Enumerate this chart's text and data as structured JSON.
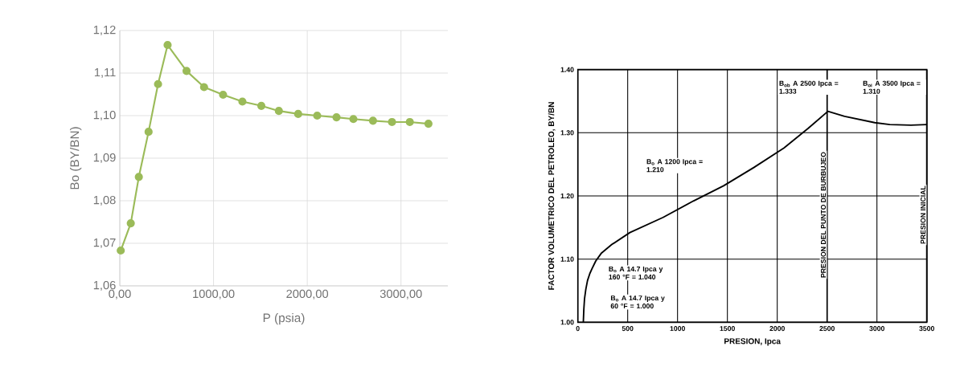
{
  "chart_data": [
    {
      "type": "line",
      "xlabel": "P (psia)",
      "ylabel": "Bo (BY/BN)",
      "grid": true,
      "marker": "circle",
      "line_style": "solid",
      "xlim": [
        0,
        3500
      ],
      "ylim": [
        1.06,
        1.12
      ],
      "xticks": [
        {
          "value": 0,
          "label": "0,00"
        },
        {
          "value": 1000,
          "label": "1000,00"
        },
        {
          "value": 2000,
          "label": "2000,00"
        },
        {
          "value": 3000,
          "label": "3000,00"
        }
      ],
      "yticks": [
        {
          "value": 1.06,
          "label": "1,06"
        },
        {
          "value": 1.07,
          "label": "1,07"
        },
        {
          "value": 1.08,
          "label": "1,08"
        },
        {
          "value": 1.09,
          "label": "1,09"
        },
        {
          "value": 1.1,
          "label": "1,10"
        },
        {
          "value": 1.11,
          "label": "1,11"
        },
        {
          "value": 1.12,
          "label": "1,12"
        }
      ],
      "x": [
        10,
        117,
        203,
        307,
        408,
        510,
        712,
        899,
        1102,
        1308,
        1510,
        1697,
        1903,
        2106,
        2312,
        2492,
        2701,
        2904,
        3094,
        3293
      ],
      "series": [
        {
          "color": "#9bbb59",
          "values": [
            1.0683,
            1.0747,
            1.0856,
            1.0962,
            1.1074,
            1.1166,
            1.1105,
            1.1067,
            1.1049,
            1.1033,
            1.1023,
            1.1011,
            1.1004,
            1.1,
            1.0996,
            1.0992,
            1.0988,
            1.0985,
            1.0985,
            1.0981
          ]
        }
      ]
    },
    {
      "type": "line",
      "xlabel": "PRESION, Ipca",
      "ylabel": "FACTOR VOLUMETRICO DEL PETROLEO, BY/BN",
      "grid": true,
      "marker": "none",
      "line_style": "solid",
      "xlim": [
        0,
        3500
      ],
      "ylim": [
        1.0,
        1.4
      ],
      "xticks": [
        0,
        500,
        1000,
        1500,
        2000,
        2500,
        3000,
        3500
      ],
      "yticks": [
        {
          "value": 1.0,
          "label": "1.00"
        },
        {
          "value": 1.1,
          "label": "1.10"
        },
        {
          "value": 1.2,
          "label": "1.20"
        },
        {
          "value": 1.3,
          "label": "1.30"
        },
        {
          "value": 1.4,
          "label": "1.40"
        }
      ],
      "x": [
        55,
        60,
        67,
        80,
        97,
        120,
        143,
        180,
        234,
        340,
        522,
        855,
        1159,
        1462,
        1765,
        2068,
        2311,
        2508,
        2675,
        2978,
        3129,
        3341,
        3500
      ],
      "series": [
        {
          "color": "#000000",
          "values": [
            1.0,
            1.02,
            1.037,
            1.052,
            1.066,
            1.077,
            1.085,
            1.097,
            1.109,
            1.123,
            1.142,
            1.166,
            1.192,
            1.216,
            1.245,
            1.276,
            1.307,
            1.334,
            1.326,
            1.316,
            1.313,
            1.312,
            1.313
          ]
        }
      ],
      "ref_lines": [
        {
          "axis": "x",
          "value": 2500,
          "label": "PRESION DEL PUNTO DE BURBUJEO"
        },
        {
          "axis": "x",
          "value": 3500,
          "label": "PRESION INICIAL"
        }
      ],
      "annotations": [
        "B$_{ob}$ A 2500 Ipca = 1.333",
        "B$_{oi}$ A 3500 Ipca = 1.310",
        "B$_{o}$ A 1200 Ipca = 1.210",
        "B$_{o}$ A 14.7 Ipca y 160 °F = 1.040",
        "B$_{o}$ A 14.7 Ipca y 60 °F = 1.000"
      ]
    }
  ]
}
